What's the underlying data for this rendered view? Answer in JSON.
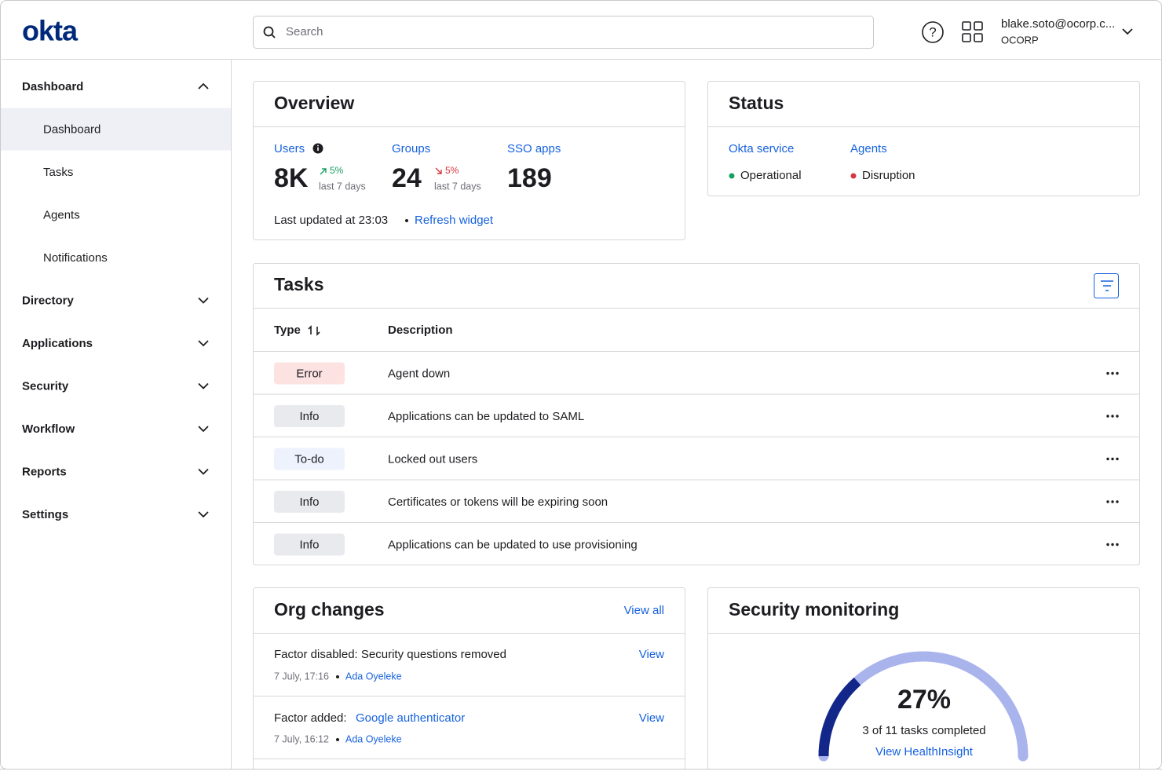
{
  "header": {
    "logo": "okta",
    "search_placeholder": "Search",
    "user_email": "blake.soto@ocorp.c...",
    "org": "OCORP"
  },
  "sidebar": {
    "sections": [
      {
        "label": "Dashboard",
        "items": [
          "Dashboard",
          "Tasks",
          "Agents",
          "Notifications"
        ]
      },
      {
        "label": "Directory"
      },
      {
        "label": "Applications"
      },
      {
        "label": "Security"
      },
      {
        "label": "Workflow"
      },
      {
        "label": "Reports"
      },
      {
        "label": "Settings"
      }
    ]
  },
  "overview": {
    "title": "Overview",
    "metrics": [
      {
        "label": "Users",
        "value": "8K",
        "change": "5%",
        "period": "last 7 days"
      },
      {
        "label": "Groups",
        "value": "24",
        "change": "5%",
        "period": "last 7 days"
      },
      {
        "label": "SSO apps",
        "value": "189"
      }
    ],
    "updated": "Last updated at 23:03",
    "refresh": "Refresh widget"
  },
  "status": {
    "title": "Status",
    "services": [
      {
        "name": "Okta service",
        "state": "Operational"
      },
      {
        "name": "Agents",
        "state": "Disruption"
      }
    ]
  },
  "tasks": {
    "title": "Tasks",
    "columns": [
      "Type",
      "Description"
    ],
    "rows": [
      [
        "Error",
        "Agent down"
      ],
      [
        "Info",
        "Applications can be updated to SAML"
      ],
      [
        "To-do",
        "Locked out users"
      ],
      [
        "Info",
        "Certificates or tokens will be expiring soon"
      ],
      [
        "Info",
        "Applications can be updated to use provisioning"
      ]
    ]
  },
  "org_changes": {
    "title": "Org changes",
    "view_all": "View all",
    "items": [
      {
        "text": "Factor disabled: Security questions removed",
        "date": "7 July, 17:16",
        "author": "Ada Oyeleke",
        "action": "View"
      },
      {
        "text": "Factor added:",
        "link": "Google authenticator",
        "date": "7 July, 16:12",
        "author": "Ada Oyeleke",
        "action": "View"
      }
    ]
  },
  "security_monitoring": {
    "title": "Security monitoring",
    "completion": {
      "value": 27,
      "label": "27%"
    },
    "caption": "3 of 11 tasks completed",
    "link": "View HealthInsight"
  }
}
